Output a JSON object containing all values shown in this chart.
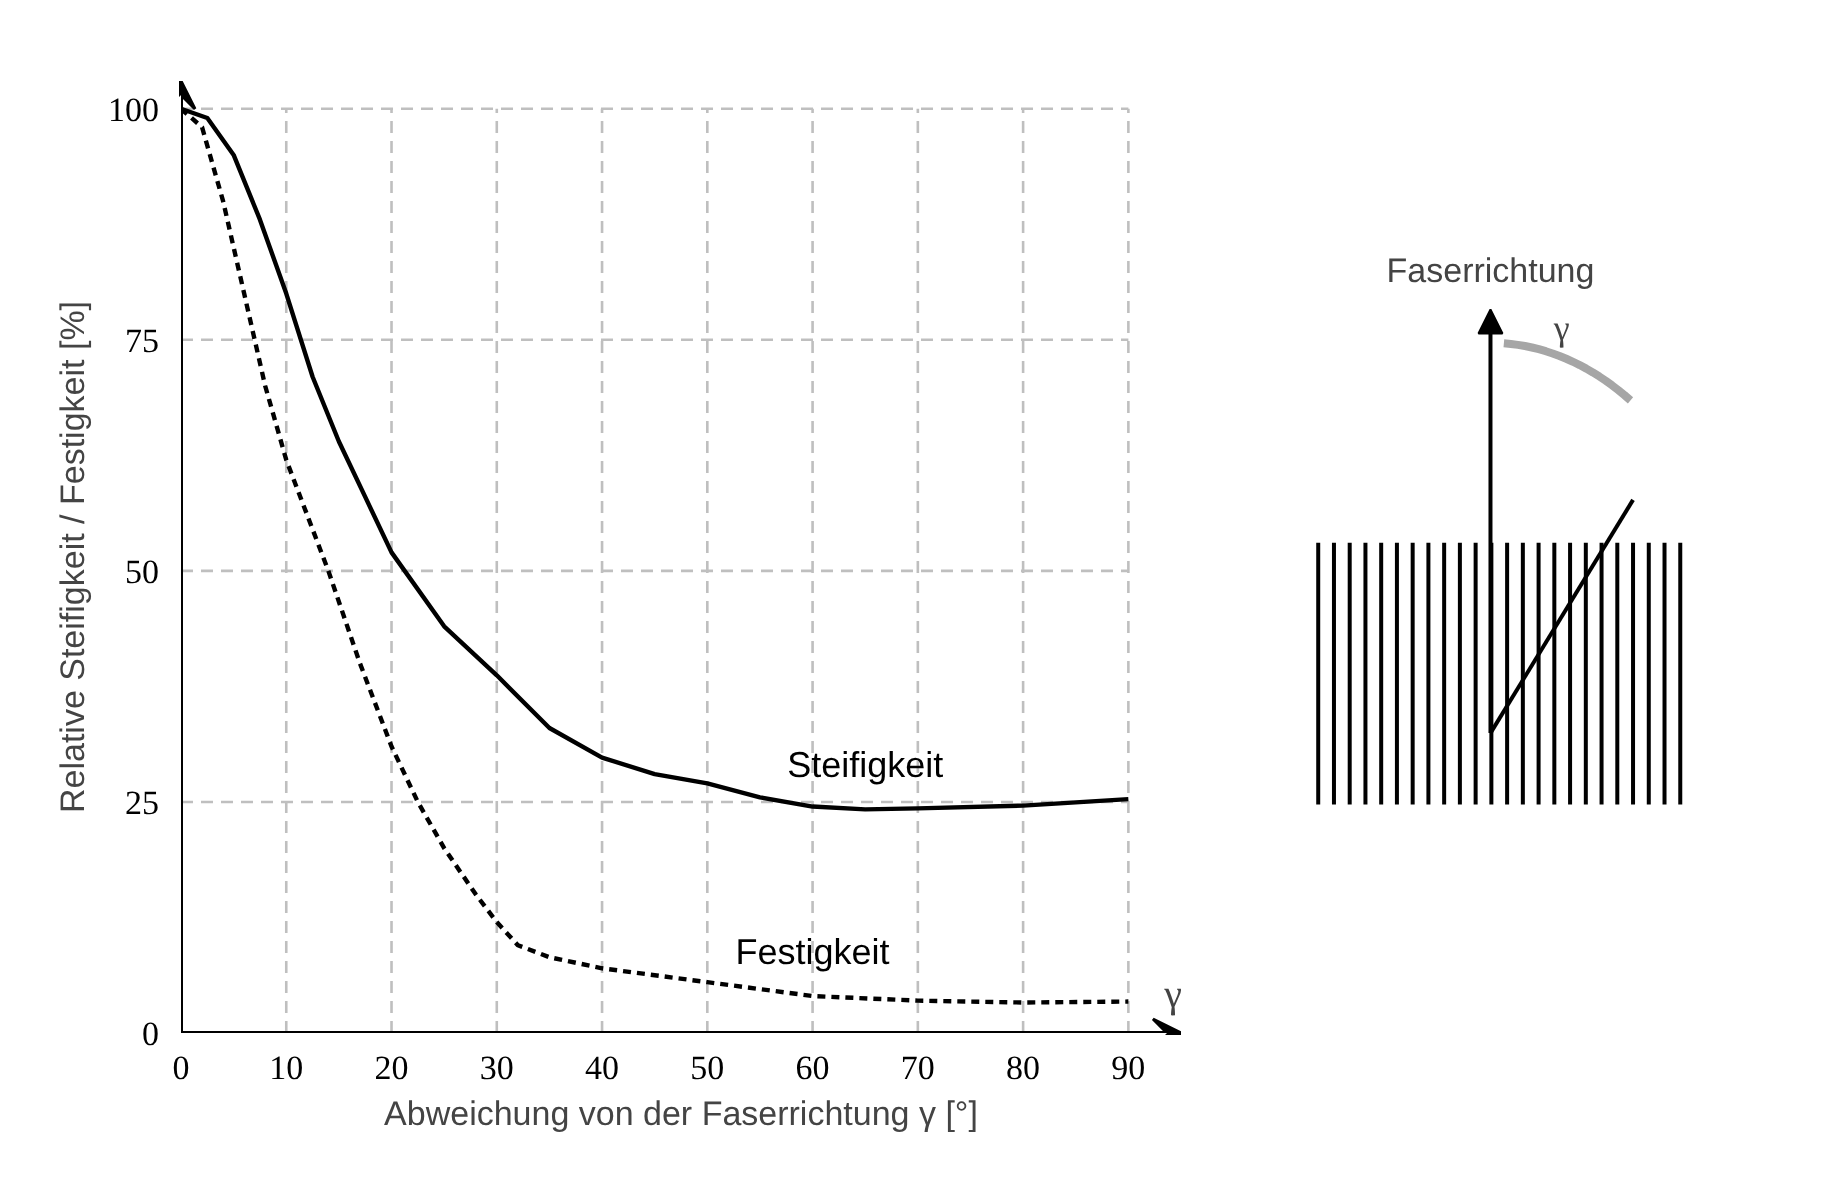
{
  "chart_data": {
    "type": "line",
    "xlabel": "Abweichung von der Faserrichtung γ [°]",
    "ylabel": "Relative Steifigkeit / Festigkeit [%]",
    "xlim": [
      0,
      95
    ],
    "ylim": [
      0,
      103
    ],
    "xticks": [
      0,
      10,
      20,
      30,
      40,
      50,
      60,
      70,
      80,
      90
    ],
    "yticks": [
      0,
      25,
      50,
      75,
      100
    ],
    "grid": true,
    "series": [
      {
        "name": "Steifigkeit",
        "color": "#000000",
        "line_style": "solid",
        "x": [
          0,
          2.5,
          5,
          7.5,
          10,
          12.5,
          15,
          17.5,
          20,
          25,
          30,
          35,
          40,
          45,
          50,
          55,
          60,
          65,
          70,
          80,
          90
        ],
        "values": [
          100,
          99,
          95,
          88,
          80,
          71,
          64,
          58,
          52,
          44,
          38.7,
          33,
          29.8,
          28,
          27,
          25.5,
          24.5,
          24.2,
          24.3,
          24.6,
          25.3
        ]
      },
      {
        "name": "Festigkeit",
        "color": "#000000",
        "line_style": "dashed",
        "x": [
          0,
          2,
          4,
          6,
          8,
          10,
          12,
          14,
          17,
          20,
          22.5,
          25,
          28,
          30,
          32,
          35,
          40,
          50,
          60,
          70,
          80,
          90
        ],
        "values": [
          100,
          98,
          90,
          80,
          70,
          62,
          56,
          50,
          40,
          31,
          25,
          20,
          15,
          12,
          9.5,
          8.2,
          7,
          5.5,
          4,
          3.5,
          3.3,
          3.4
        ]
      }
    ],
    "annotations": [
      "γ",
      "Faserrichtung",
      "γ"
    ]
  }
}
